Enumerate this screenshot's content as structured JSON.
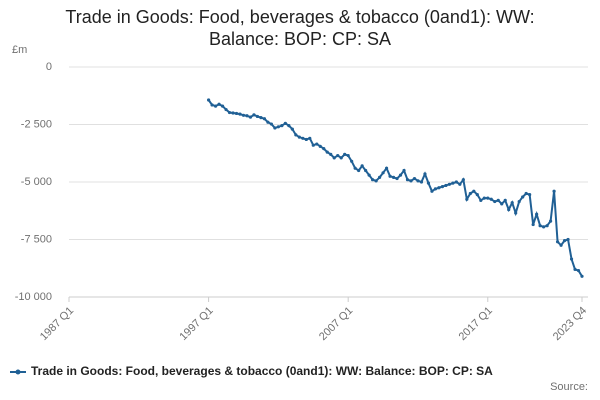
{
  "chart_data": {
    "type": "line",
    "title": "Trade in Goods: Food, beverages & tobacco (0and1): WW: Balance: BOP: CP: SA",
    "y_unit": "£m",
    "source": "Source:",
    "categories": [
      "1987 Q1",
      null,
      null,
      null,
      null,
      null,
      null,
      null,
      null,
      null,
      null,
      null,
      null,
      null,
      null,
      null,
      null,
      null,
      null,
      null,
      null,
      null,
      null,
      null,
      null,
      null,
      null,
      null,
      null,
      null,
      null,
      null,
      null,
      null,
      null,
      null,
      null,
      null,
      null,
      null,
      "1997 Q1",
      null,
      null,
      null,
      null,
      null,
      null,
      null,
      null,
      null,
      null,
      null,
      null,
      null,
      null,
      null,
      null,
      null,
      null,
      null,
      null,
      null,
      null,
      null,
      null,
      null,
      null,
      null,
      null,
      null,
      null,
      null,
      null,
      null,
      null,
      null,
      null,
      null,
      null,
      null,
      "2007 Q1",
      null,
      null,
      null,
      null,
      null,
      null,
      null,
      null,
      null,
      null,
      null,
      null,
      null,
      null,
      null,
      null,
      null,
      null,
      null,
      null,
      null,
      null,
      null,
      null,
      null,
      null,
      null,
      null,
      null,
      null,
      null,
      null,
      null,
      null,
      null,
      null,
      null,
      null,
      null,
      "2017 Q1",
      null,
      null,
      null,
      null,
      null,
      null,
      null,
      null,
      null,
      null,
      null,
      null,
      null,
      null,
      null,
      null,
      null,
      null,
      null,
      null,
      null,
      null,
      null,
      null,
      null,
      null,
      "2023 Q4"
    ],
    "series": [
      {
        "name": "Trade in Goods: Food, beverages & tobacco (0and1): WW: Balance: BOP: CP: SA",
        "color": "#206095",
        "values": [
          null,
          null,
          null,
          null,
          null,
          null,
          null,
          null,
          null,
          null,
          null,
          null,
          null,
          null,
          null,
          null,
          null,
          null,
          null,
          null,
          null,
          null,
          null,
          null,
          null,
          null,
          null,
          null,
          null,
          null,
          null,
          null,
          null,
          null,
          null,
          null,
          null,
          null,
          null,
          null,
          -1435,
          -1650,
          -1700,
          -1620,
          -1700,
          -1850,
          -1980,
          -2000,
          -2020,
          -2050,
          -2100,
          -2120,
          -2180,
          -2080,
          -2150,
          -2200,
          -2250,
          -2400,
          -2480,
          -2650,
          -2600,
          -2550,
          -2450,
          -2550,
          -2700,
          -2950,
          -3050,
          -3100,
          -3150,
          -3100,
          -3400,
          -3350,
          -3450,
          -3550,
          -3700,
          -3800,
          -3950,
          -3850,
          -3950,
          -3800,
          -3850,
          -4100,
          -4400,
          -4500,
          -4300,
          -4500,
          -4700,
          -4900,
          -4950,
          -4800,
          -4600,
          -4400,
          -4750,
          -4800,
          -4850,
          -4700,
          -4500,
          -4900,
          -4950,
          -4850,
          -4950,
          -5000,
          -4650,
          -5050,
          -5400,
          -5300,
          -5250,
          -5200,
          -5150,
          -5100,
          -5050,
          -5000,
          -5100,
          -4900,
          -5750,
          -5500,
          -5400,
          -5550,
          -5800,
          -5700,
          -5700,
          -5750,
          -5850,
          -5800,
          -5950,
          -5800,
          -6200,
          -5900,
          -6350,
          -5850,
          -5650,
          -5500,
          -5550,
          -6850,
          -6400,
          -6900,
          -6950,
          -6900,
          -6700,
          -5400,
          -7600,
          -7750,
          -7550,
          -7500,
          -8350,
          -8800,
          -8850,
          -9100
        ]
      }
    ],
    "ylim": [
      -10000,
      0
    ],
    "yticks": [
      {
        "value": -10000,
        "label": "-10 000"
      },
      {
        "value": -7500,
        "label": "-7 500"
      },
      {
        "value": -5000,
        "label": "-5 000"
      },
      {
        "value": -2500,
        "label": "-2 500"
      },
      0
    ],
    "grid": true
  }
}
